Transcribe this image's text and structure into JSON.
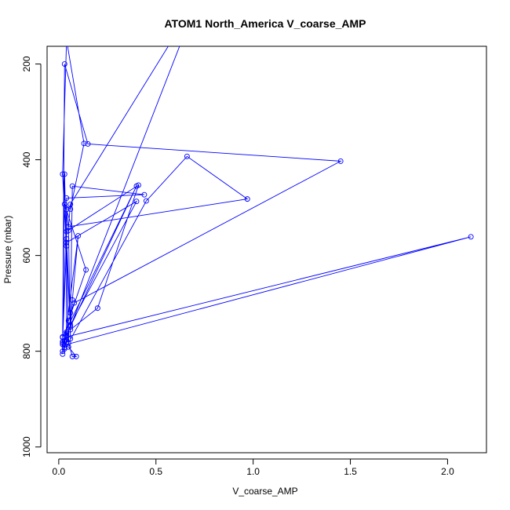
{
  "chart_data": {
    "type": "line",
    "title": "ATOM1 North_America V_coarse_AMP",
    "xlabel": "V_coarse_AMP",
    "ylabel": "Pressure (mbar)",
    "xlim": [
      -0.06,
      2.2
    ],
    "ylim": [
      1012,
      163
    ],
    "y_reversed": true,
    "xticks": [
      0.0,
      0.5,
      1.0,
      1.5,
      2.0
    ],
    "xtick_labels": [
      "0.0",
      "0.5",
      "1.0",
      "1.5",
      "2.0"
    ],
    "yticks": [
      200,
      400,
      600,
      800,
      1000
    ],
    "ytick_labels": [
      "200",
      "400",
      "600",
      "800",
      "1000"
    ],
    "grid": false,
    "legend": "none",
    "series_color": "#0000ff",
    "series": [
      {
        "x": [
          0.02,
          0.02,
          0.03,
          0.05,
          0.45,
          0.66,
          0.97,
          0.05,
          0.06,
          0.72,
          0.03,
          0.1,
          0.07,
          0.06,
          0.2,
          0.41,
          0.04,
          0.04,
          0.4,
          0.06,
          0.04,
          0.04,
          0.04,
          0.02,
          0.03,
          0.15,
          1.45,
          0.08,
          0.06,
          0.06,
          0.05,
          0.04,
          0.02,
          0.4,
          0.04,
          0.07,
          0.09,
          0.05,
          0.03,
          2.12,
          0.04,
          0.04,
          0.44,
          0.07,
          0.06,
          0.02,
          0.04,
          0.13,
          0.06,
          0.03,
          0.14,
          0.05,
          0.03,
          0.02,
          0.03,
          0.02,
          0.04,
          0.04,
          0.02,
          0.03,
          0.04
        ],
        "y": [
          806,
          770,
          430,
          783,
          486,
          393,
          482,
          540,
          493,
          60,
          780,
          559,
          693,
          755,
          710,
          453,
          550,
          573,
          487,
          745,
          565,
          763,
          580,
          780,
          200,
          367,
          403,
          699,
          720,
          774,
          548,
          504,
          771,
          455,
          766,
          811,
          811,
          791,
          787,
          561,
          770,
          480,
          473,
          455,
          749,
          430,
          150,
          366,
          503,
          493,
          630,
          736,
          778,
          783,
          795,
          800,
          781,
          760,
          786,
          792,
          776
        ]
      }
    ]
  }
}
